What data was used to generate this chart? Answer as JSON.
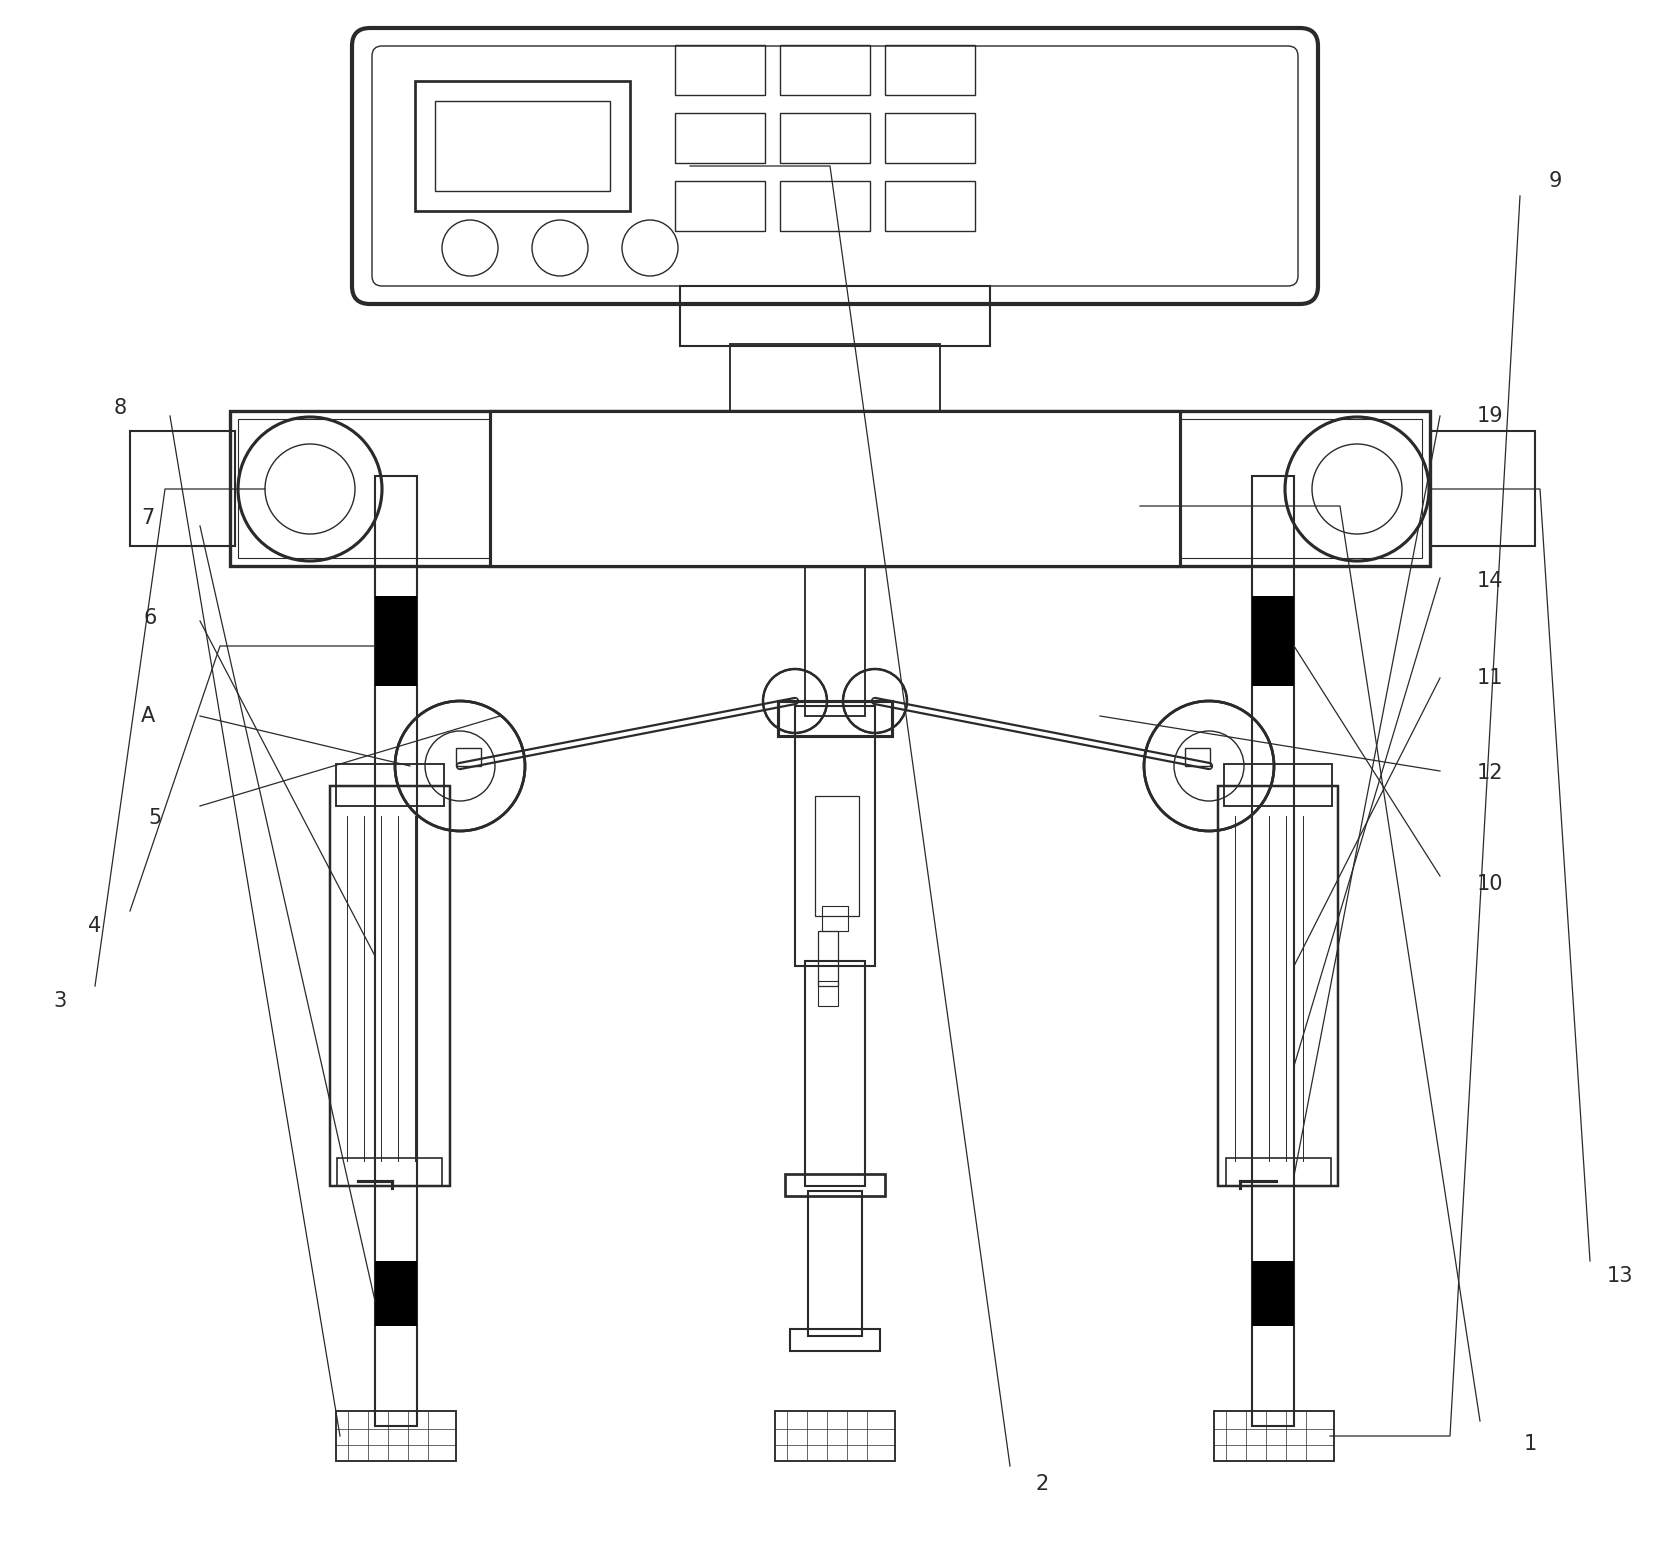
{
  "bg_color": "#ffffff",
  "lc": "#2a2a2a",
  "lw": 1.5,
  "tlw": 2.0,
  "fs": 15
}
